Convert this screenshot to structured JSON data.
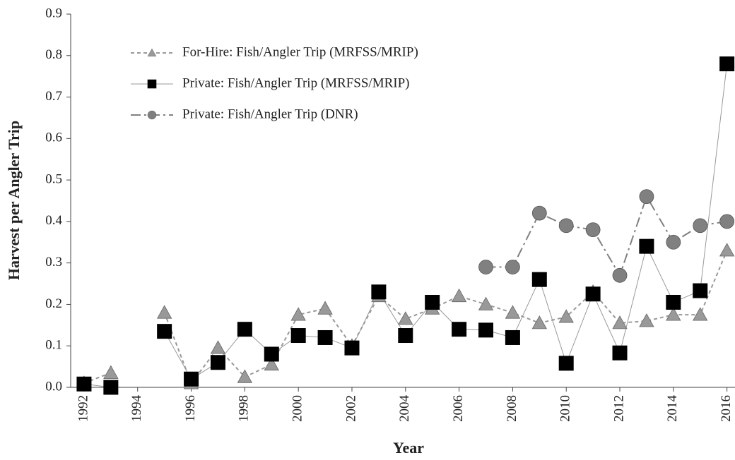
{
  "chart_data": {
    "type": "line",
    "x_label": "Year",
    "y_label": "Harvest per Angler Trip",
    "x": [
      1992,
      1993,
      1994,
      1995,
      1996,
      1997,
      1998,
      1999,
      2000,
      2001,
      2002,
      2003,
      2004,
      2005,
      2006,
      2007,
      2008,
      2009,
      2010,
      2011,
      2012,
      2013,
      2014,
      2015,
      2016
    ],
    "series": [
      {
        "name": "For-Hire: Fish/Angler Trip (MRFSS/MRIP)",
        "color": "#999999",
        "line_style": "dashed",
        "marker": "triangle",
        "values": [
          0.01,
          0.035,
          null,
          0.18,
          0.01,
          0.095,
          0.025,
          0.055,
          0.175,
          0.19,
          0.1,
          0.22,
          0.165,
          0.19,
          0.22,
          0.2,
          0.18,
          0.155,
          0.17,
          0.23,
          0.155,
          0.16,
          0.175,
          0.175,
          0.33
        ]
      },
      {
        "name": "Private: Fish/Angler Trip (MRFSS/MRIP)",
        "color": "#000000",
        "line_style": "solid",
        "marker": "square",
        "values": [
          0.008,
          0.0,
          null,
          0.135,
          0.02,
          0.06,
          0.14,
          0.08,
          0.125,
          0.12,
          0.095,
          0.23,
          0.125,
          0.205,
          0.14,
          0.138,
          0.12,
          0.26,
          0.058,
          0.225,
          0.083,
          0.34,
          0.205,
          0.233,
          0.78
        ]
      },
      {
        "name": "Private: Fish/Angler Trip (DNR)",
        "color": "#808080",
        "line_style": "dashdot",
        "marker": "circle",
        "values": [
          null,
          null,
          null,
          null,
          null,
          null,
          null,
          null,
          null,
          null,
          null,
          null,
          null,
          null,
          null,
          0.29,
          0.29,
          0.42,
          0.39,
          0.38,
          0.27,
          0.46,
          0.35,
          0.39,
          0.4
        ]
      }
    ],
    "xlim": [
      1991.5,
      2016.3
    ],
    "xticks": [
      1992,
      1994,
      1996,
      1998,
      2000,
      2002,
      2004,
      2006,
      2008,
      2010,
      2012,
      2014,
      2016
    ],
    "ylim": [
      0,
      0.9
    ],
    "yticks": [
      {
        "value": 0,
        "label": "0.0"
      },
      0.1,
      0.2,
      0.3,
      0.4,
      0.5,
      0.6,
      0.7,
      0.8,
      0.9
    ],
    "grid": false,
    "legend": "upper left"
  }
}
